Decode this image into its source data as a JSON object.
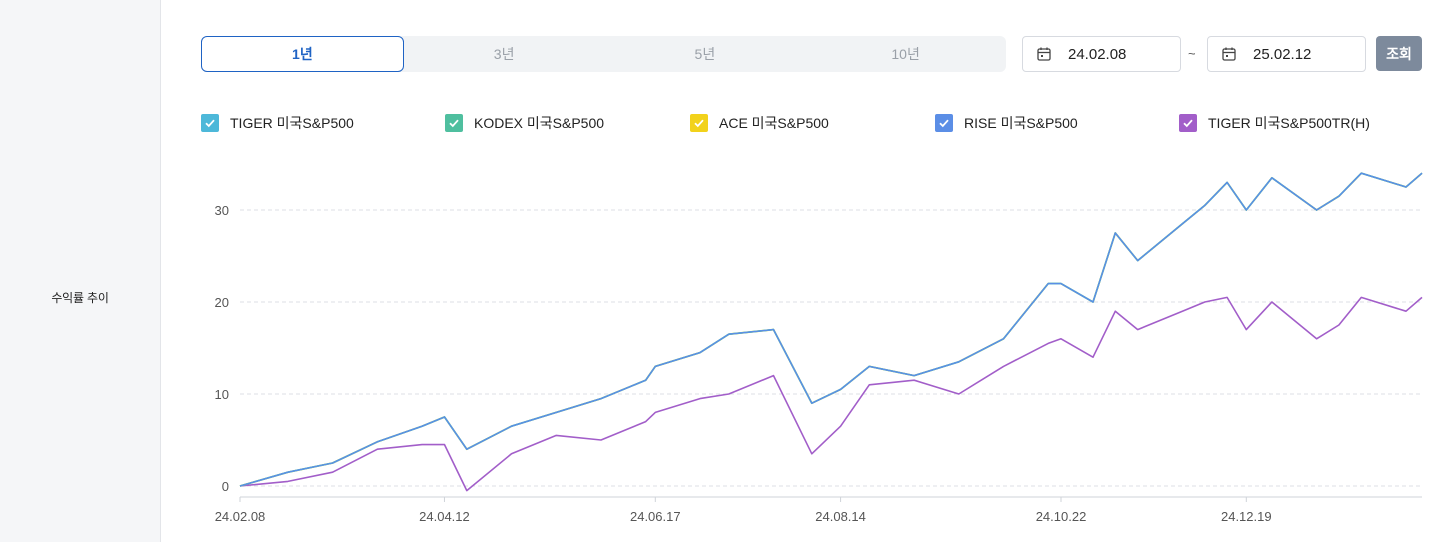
{
  "section": {
    "label": "수익률 추이"
  },
  "period_tabs": [
    {
      "label": "1년",
      "active": true
    },
    {
      "label": "3년",
      "active": false
    },
    {
      "label": "5년",
      "active": false
    },
    {
      "label": "10년",
      "active": false
    }
  ],
  "date_range": {
    "start": "24.02.08",
    "separator": "~",
    "end": "25.02.12",
    "search_label": "조회"
  },
  "icons": {
    "date_start": "calendar-icon",
    "date_end": "calendar-icon",
    "legend_check": "check-icon"
  },
  "colors": {
    "active_tab": "#1f63c4",
    "search_button": "#7d8a9c",
    "TIGER 미국S&P500": "#4db8d9",
    "KODEX 미국S&P500": "#4fbf9f",
    "ACE 미국S&P500": "#f2d21b",
    "RISE 미국S&P500": "#5b8ee6",
    "TIGER 미국S&P500TR(H)": "#a25ec9"
  },
  "chart_data": {
    "type": "line",
    "title": "",
    "xlabel": "",
    "ylabel": "",
    "y_ticks": [
      0,
      10,
      20,
      30
    ],
    "x_ticks": [
      "24.02.08",
      "24.04.12",
      "24.06.17",
      "24.08.14",
      "24.10.22",
      "24.12.19"
    ],
    "xlim": [
      "24.02.08",
      "25.02.12"
    ],
    "ylim": [
      -1,
      36
    ],
    "grid": "horizontal dashed",
    "legend_position": "top",
    "x": [
      "24.02.08",
      "24.02.23",
      "24.03.08",
      "24.03.22",
      "24.04.05",
      "24.04.12",
      "24.04.19",
      "24.05.03",
      "24.05.17",
      "24.05.31",
      "24.06.14",
      "24.06.17",
      "24.07.01",
      "24.07.10",
      "24.07.24",
      "24.08.05",
      "24.08.14",
      "24.08.23",
      "24.09.06",
      "24.09.20",
      "24.10.04",
      "24.10.18",
      "24.10.22",
      "24.11.01",
      "24.11.08",
      "24.11.15",
      "24.11.29",
      "24.12.06",
      "24.12.13",
      "24.12.19",
      "24.12.27",
      "25.01.10",
      "25.01.17",
      "25.01.24",
      "25.02.07",
      "25.02.12"
    ],
    "series": [
      {
        "name": "TIGER 미국S&P500",
        "values": [
          0,
          1.5,
          2.5,
          4.8,
          6.5,
          7.5,
          4.0,
          6.5,
          8.0,
          9.5,
          11.5,
          13.0,
          14.5,
          16.5,
          17.0,
          9.0,
          10.5,
          13.0,
          12.0,
          13.5,
          16.0,
          22.0,
          22.0,
          20.0,
          27.5,
          24.5,
          28.5,
          30.5,
          33.0,
          30.0,
          33.5,
          30.0,
          31.5,
          34.0,
          32.5,
          34.0
        ]
      },
      {
        "name": "KODEX 미국S&P500",
        "values": [
          0,
          1.5,
          2.5,
          4.8,
          6.5,
          7.5,
          4.0,
          6.5,
          8.0,
          9.5,
          11.5,
          13.0,
          14.5,
          16.5,
          17.0,
          9.0,
          10.5,
          13.0,
          12.0,
          13.5,
          16.0,
          22.0,
          22.0,
          20.0,
          27.5,
          24.5,
          28.5,
          30.5,
          33.0,
          30.0,
          33.5,
          30.0,
          31.5,
          34.0,
          32.5,
          34.0
        ]
      },
      {
        "name": "ACE 미국S&P500",
        "values": [
          0,
          1.5,
          2.5,
          4.8,
          6.5,
          7.5,
          4.0,
          6.5,
          8.0,
          9.5,
          11.5,
          13.0,
          14.5,
          16.5,
          17.0,
          9.0,
          10.5,
          13.0,
          12.0,
          13.5,
          16.0,
          22.0,
          22.0,
          20.0,
          27.5,
          24.5,
          28.5,
          30.5,
          33.0,
          30.0,
          33.5,
          30.0,
          31.5,
          34.0,
          32.5,
          34.0
        ]
      },
      {
        "name": "RISE 미국S&P500",
        "values": [
          0,
          1.5,
          2.5,
          4.8,
          6.5,
          7.5,
          4.0,
          6.5,
          8.0,
          9.5,
          11.5,
          13.0,
          14.5,
          16.5,
          17.0,
          9.0,
          10.5,
          13.0,
          12.0,
          13.5,
          16.0,
          22.0,
          22.0,
          20.0,
          27.5,
          24.5,
          28.5,
          30.5,
          33.0,
          30.0,
          33.5,
          30.0,
          31.5,
          34.0,
          32.5,
          34.0
        ]
      },
      {
        "name": "TIGER 미국S&P500TR(H)",
        "values": [
          0,
          0.5,
          1.5,
          4.0,
          4.5,
          4.5,
          -0.5,
          3.5,
          5.5,
          5.0,
          7.0,
          8.0,
          9.5,
          10.0,
          12.0,
          3.5,
          6.5,
          11.0,
          11.5,
          10.0,
          13.0,
          15.5,
          16.0,
          14.0,
          19.0,
          17.0,
          19.0,
          20.0,
          20.5,
          17.0,
          20.0,
          16.0,
          17.5,
          20.5,
          19.0,
          20.5
        ]
      }
    ]
  }
}
